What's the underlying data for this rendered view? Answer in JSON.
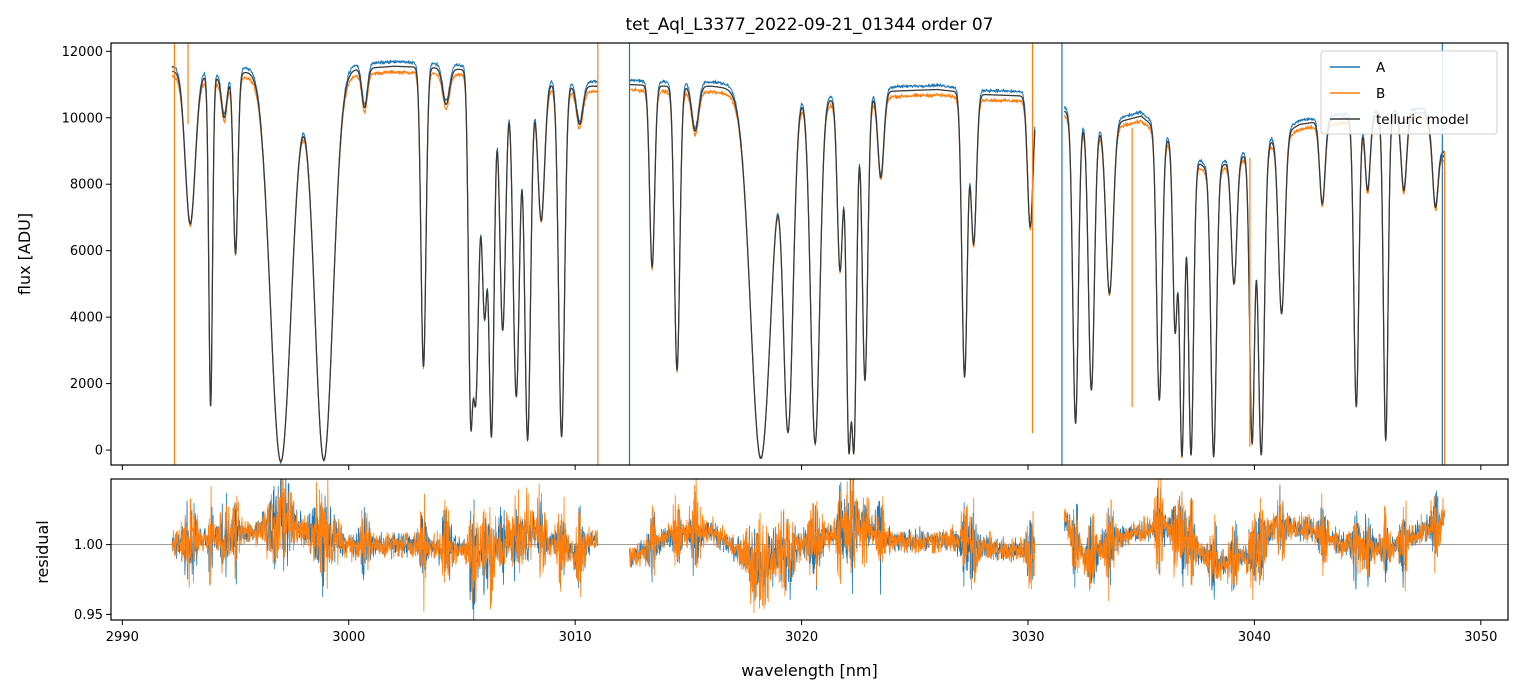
{
  "chart_data": {
    "type": "line",
    "title": "tet_Aql_L3377_2022-09-21_01344  order 07",
    "xlabel": "wavelength [nm]",
    "xlim": [
      2989.5,
      3051.2
    ],
    "xticks": [
      "2990",
      "3000",
      "3010",
      "3020",
      "3030",
      "3040",
      "3050"
    ],
    "colors": {
      "A": "#1f77b4",
      "B": "#ff7f0e",
      "model": "#3a3a3a",
      "ref": "#808080"
    },
    "panels": [
      {
        "name": "flux",
        "ylabel": "flux [ADU]",
        "ylim": [
          -450,
          12250
        ],
        "yticks": [
          "0",
          "2000",
          "4000",
          "6000",
          "8000",
          "10000",
          "12000"
        ],
        "legend": {
          "position": "top-right",
          "entries": [
            "A",
            "B",
            "telluric model"
          ]
        },
        "continuum": [
          [
            2992.2,
            11400
          ],
          [
            2993,
            11450
          ],
          [
            2994,
            11200
          ],
          [
            2995,
            11300
          ],
          [
            2996,
            11500
          ],
          [
            2997,
            11050
          ],
          [
            2998,
            11250
          ],
          [
            2999,
            11350
          ],
          [
            3000,
            11450
          ],
          [
            3002,
            11550
          ],
          [
            3004,
            11500
          ],
          [
            3006,
            11400
          ],
          [
            3008,
            11100
          ],
          [
            3010,
            10950
          ],
          [
            3011,
            10950
          ]
        ],
        "continuum2": [
          [
            3012.4,
            11000
          ],
          [
            3014,
            10950
          ],
          [
            3016,
            10950
          ],
          [
            3018,
            10800
          ],
          [
            3020,
            10650
          ],
          [
            3022,
            10500
          ],
          [
            3024,
            10800
          ],
          [
            3026,
            10850
          ],
          [
            3028,
            10700
          ],
          [
            3030,
            10650
          ],
          [
            3030.3,
            10600
          ]
        ],
        "continuum3": [
          [
            3031.6,
            10200
          ],
          [
            3033,
            9700
          ],
          [
            3035,
            10050
          ],
          [
            3036.5,
            9200
          ],
          [
            3038,
            8400
          ],
          [
            3040,
            9000
          ],
          [
            3042,
            9800
          ],
          [
            3044,
            10000
          ],
          [
            3046,
            10100
          ],
          [
            3047.5,
            10150
          ],
          [
            3048.4,
            8800
          ]
        ],
        "lines": [
          {
            "c": 2993.0,
            "w": 0.22,
            "min": 6800
          },
          {
            "c": 2993.9,
            "w": 0.08,
            "min": 1300
          },
          {
            "c": 2994.5,
            "w": 0.12,
            "min": 10000
          },
          {
            "c": 2995.0,
            "w": 0.1,
            "min": 5900
          },
          {
            "c": 2997.0,
            "w": 0.45,
            "min": -350
          },
          {
            "c": 2998.9,
            "w": 0.4,
            "min": -300
          },
          {
            "c": 3000.7,
            "w": 0.12,
            "min": 10300
          },
          {
            "c": 3003.3,
            "w": 0.11,
            "min": 2500
          },
          {
            "c": 3004.3,
            "w": 0.15,
            "min": 10400
          },
          {
            "c": 3005.4,
            "w": 0.1,
            "min": 900
          },
          {
            "c": 3005.6,
            "w": 0.15,
            "min": 1500
          },
          {
            "c": 3006.0,
            "w": 0.12,
            "min": 4200
          },
          {
            "c": 3006.3,
            "w": 0.12,
            "min": 400
          },
          {
            "c": 3006.8,
            "w": 0.13,
            "min": 3600
          },
          {
            "c": 3007.4,
            "w": 0.14,
            "min": 1600
          },
          {
            "c": 3007.9,
            "w": 0.13,
            "min": 300
          },
          {
            "c": 3008.5,
            "w": 0.15,
            "min": 6900
          },
          {
            "c": 3009.4,
            "w": 0.13,
            "min": 400
          },
          {
            "c": 3010.2,
            "w": 0.14,
            "min": 9800
          },
          {
            "c": 3013.4,
            "w": 0.11,
            "min": 5500
          },
          {
            "c": 3014.5,
            "w": 0.12,
            "min": 2400
          },
          {
            "c": 3015.3,
            "w": 0.15,
            "min": 9600
          },
          {
            "c": 3018.2,
            "w": 0.45,
            "min": -250
          },
          {
            "c": 3019.4,
            "w": 0.22,
            "min": 550
          },
          {
            "c": 3020.6,
            "w": 0.2,
            "min": 200
          },
          {
            "c": 3021.7,
            "w": 0.12,
            "min": 5400
          },
          {
            "c": 3022.1,
            "w": 0.12,
            "min": -150
          },
          {
            "c": 3022.3,
            "w": 0.12,
            "min": -150
          },
          {
            "c": 3022.8,
            "w": 0.12,
            "min": 2100
          },
          {
            "c": 3023.5,
            "w": 0.13,
            "min": 8200
          },
          {
            "c": 3027.2,
            "w": 0.12,
            "min": 2200
          },
          {
            "c": 3027.6,
            "w": 0.12,
            "min": 6200
          },
          {
            "c": 3030.1,
            "w": 0.12,
            "min": 6700
          },
          {
            "c": 3032.1,
            "w": 0.12,
            "min": 800
          },
          {
            "c": 3032.8,
            "w": 0.13,
            "min": 1800
          },
          {
            "c": 3033.6,
            "w": 0.16,
            "min": 4700
          },
          {
            "c": 3035.8,
            "w": 0.12,
            "min": 1500
          },
          {
            "c": 3036.5,
            "w": 0.1,
            "min": 3600
          },
          {
            "c": 3036.8,
            "w": 0.11,
            "min": -200
          },
          {
            "c": 3037.2,
            "w": 0.11,
            "min": -150
          },
          {
            "c": 3038.2,
            "w": 0.12,
            "min": -200
          },
          {
            "c": 3039.1,
            "w": 0.12,
            "min": 5000
          },
          {
            "c": 3039.9,
            "w": 0.11,
            "min": 200
          },
          {
            "c": 3040.3,
            "w": 0.13,
            "min": -150
          },
          {
            "c": 3041.2,
            "w": 0.14,
            "min": 4100
          },
          {
            "c": 3043.0,
            "w": 0.12,
            "min": 7400
          },
          {
            "c": 3044.5,
            "w": 0.11,
            "min": 1300
          },
          {
            "c": 3045.0,
            "w": 0.11,
            "min": 7800
          },
          {
            "c": 3045.8,
            "w": 0.1,
            "min": 300
          },
          {
            "c": 3046.6,
            "w": 0.12,
            "min": 7800
          },
          {
            "c": 3048.0,
            "w": 0.12,
            "min": 7300
          }
        ],
        "spikes": [
          {
            "x": 2992.3,
            "series": "B",
            "top": 12250,
            "bottom": -450
          },
          {
            "x": 2992.9,
            "series": "B",
            "top": 12250,
            "bottom": 9800
          },
          {
            "x": 3011.0,
            "series": "B",
            "top": 12250,
            "bottom": -450
          },
          {
            "x": 3012.4,
            "series": "A",
            "top": 12250,
            "bottom": -450
          },
          {
            "x": 3030.2,
            "series": "B",
            "top": 12250,
            "bottom": 500
          },
          {
            "x": 3031.5,
            "series": "A",
            "top": 12250,
            "bottom": -450
          },
          {
            "x": 3034.6,
            "series": "B",
            "top": 9700,
            "bottom": 1300
          },
          {
            "x": 3039.8,
            "series": "B",
            "top": 8800,
            "bottom": 100
          },
          {
            "x": 3048.3,
            "series": "A",
            "top": 12250,
            "bottom": -450
          },
          {
            "x": 3048.4,
            "series": "B",
            "top": 9000,
            "bottom": -450
          }
        ]
      },
      {
        "name": "residual",
        "ylabel": "residual",
        "ylim": [
          0.946,
          1.047
        ],
        "yticks": [
          "0.95",
          "1.00"
        ],
        "reference": 1.0,
        "segments": [
          [
            2992.2,
            3011.0
          ],
          [
            3012.4,
            3030.3
          ],
          [
            3031.6,
            3048.4
          ]
        ],
        "trend": [
          [
            2992.2,
            1.0
          ],
          [
            2994,
            1.005
          ],
          [
            2996,
            1.01
          ],
          [
            2997,
            1.02
          ],
          [
            2998,
            1.01
          ],
          [
            3000,
            1.0
          ],
          [
            3003,
            1.0
          ],
          [
            3006,
            0.995
          ],
          [
            3008,
            1.01
          ],
          [
            3010,
            0.995
          ],
          [
            3011,
            1.005
          ],
          [
            3012.4,
            0.99
          ],
          [
            3014,
            1.005
          ],
          [
            3016,
            1.01
          ],
          [
            3018,
            0.985
          ],
          [
            3019,
            0.995
          ],
          [
            3021,
            1.005
          ],
          [
            3022.5,
            1.015
          ],
          [
            3024,
            1.002
          ],
          [
            3027,
            1.003
          ],
          [
            3029,
            0.995
          ],
          [
            3030.3,
            0.997
          ],
          [
            3031.6,
            1.02
          ],
          [
            3032.5,
            0.99
          ],
          [
            3034,
            1.005
          ],
          [
            3036,
            1.015
          ],
          [
            3037.5,
            0.995
          ],
          [
            3038.5,
            0.985
          ],
          [
            3040,
            0.995
          ],
          [
            3041,
            1.015
          ],
          [
            3042.5,
            1.01
          ],
          [
            3044,
            1.0
          ],
          [
            3046,
            0.997
          ],
          [
            3047.5,
            1.01
          ],
          [
            3048.4,
            1.02
          ]
        ]
      }
    ]
  }
}
